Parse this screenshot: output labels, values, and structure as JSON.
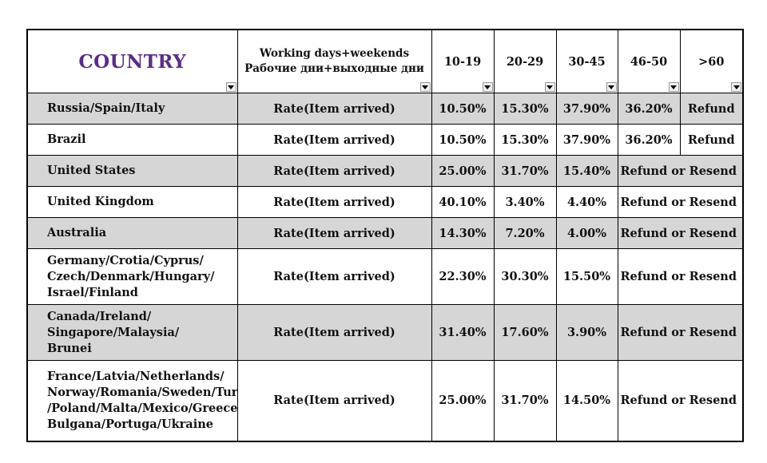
{
  "header": {
    "country": "COUNTRY",
    "working_line1": "Working days+weekends",
    "working_line2": "Рабочие дни+выходные дни",
    "ranges": [
      "10-19",
      "20-29",
      "30-45",
      "46-50",
      ">60"
    ]
  },
  "rows": [
    {
      "country_lines": [
        "Russia/Spain/Italy"
      ],
      "country_color": "purple",
      "shade": "gray",
      "rate": "Rate(Item arrived)",
      "v1": "10.50%",
      "v2": "15.30%",
      "v3": "37.90%",
      "v4": "36.20%",
      "v5": "Refund",
      "merged": ""
    },
    {
      "country_lines": [
        "Brazil"
      ],
      "country_color": "purple",
      "shade": "white",
      "rate": "Rate(Item arrived)",
      "v1": "10.50%",
      "v2": "15.30%",
      "v3": "37.90%",
      "v4": "36.20%",
      "v5": "Refund",
      "merged": ""
    },
    {
      "country_lines": [
        "United States"
      ],
      "country_color": "purple",
      "shade": "gray",
      "rate": "Rate(Item arrived)",
      "v1": "25.00%",
      "v2": "31.70%",
      "v3": "15.40%",
      "merged": "Refund or Resend"
    },
    {
      "country_lines": [
        "United Kingdom"
      ],
      "country_color": "purple",
      "shade": "white",
      "rate": "Rate(Item arrived)",
      "v1": "40.10%",
      "v2": "3.40%",
      "v3": "4.40%",
      "merged": "Refund or Resend"
    },
    {
      "country_lines": [
        "Australia"
      ],
      "country_color": "black",
      "shade": "gray",
      "rate": "Rate(Item arrived)",
      "v1": "14.30%",
      "v2": "7.20%",
      "v3": "4.00%",
      "merged": "Refund or Resend"
    },
    {
      "country_lines": [
        "Germany/Crotia/Cyprus/",
        "Czech/Denmark/Hungary/",
        "Israel/Finland"
      ],
      "country_color": "black",
      "shade": "white",
      "rate": "Rate(Item arrived)",
      "v1": "22.30%",
      "v2": "30.30%",
      "v3": "15.50%",
      "merged": "Refund or Resend"
    },
    {
      "country_lines": [
        "Canada/Ireland/",
        "Singapore/Malaysia/",
        "Brunei"
      ],
      "country_color": "black",
      "shade": "gray",
      "rate": "Rate(Item arrived)",
      "v1": "31.40%",
      "v2": "17.60%",
      "v3": "3.90%",
      "merged": "Refund or Resend"
    },
    {
      "country_lines": [
        "France/Latvia/Netherlands/",
        "Norway/Romania/Sweden/Turkey",
        "/Poland/Malta/Mexico/Greece/",
        "Bulgana/Portuga/Ukraine"
      ],
      "country_color": "black",
      "shade": "white",
      "rate": "Rate(Item arrived)",
      "v1": "25.00%",
      "v2": "31.70%",
      "v3": "14.50%",
      "merged": "Refund or Resend"
    }
  ]
}
